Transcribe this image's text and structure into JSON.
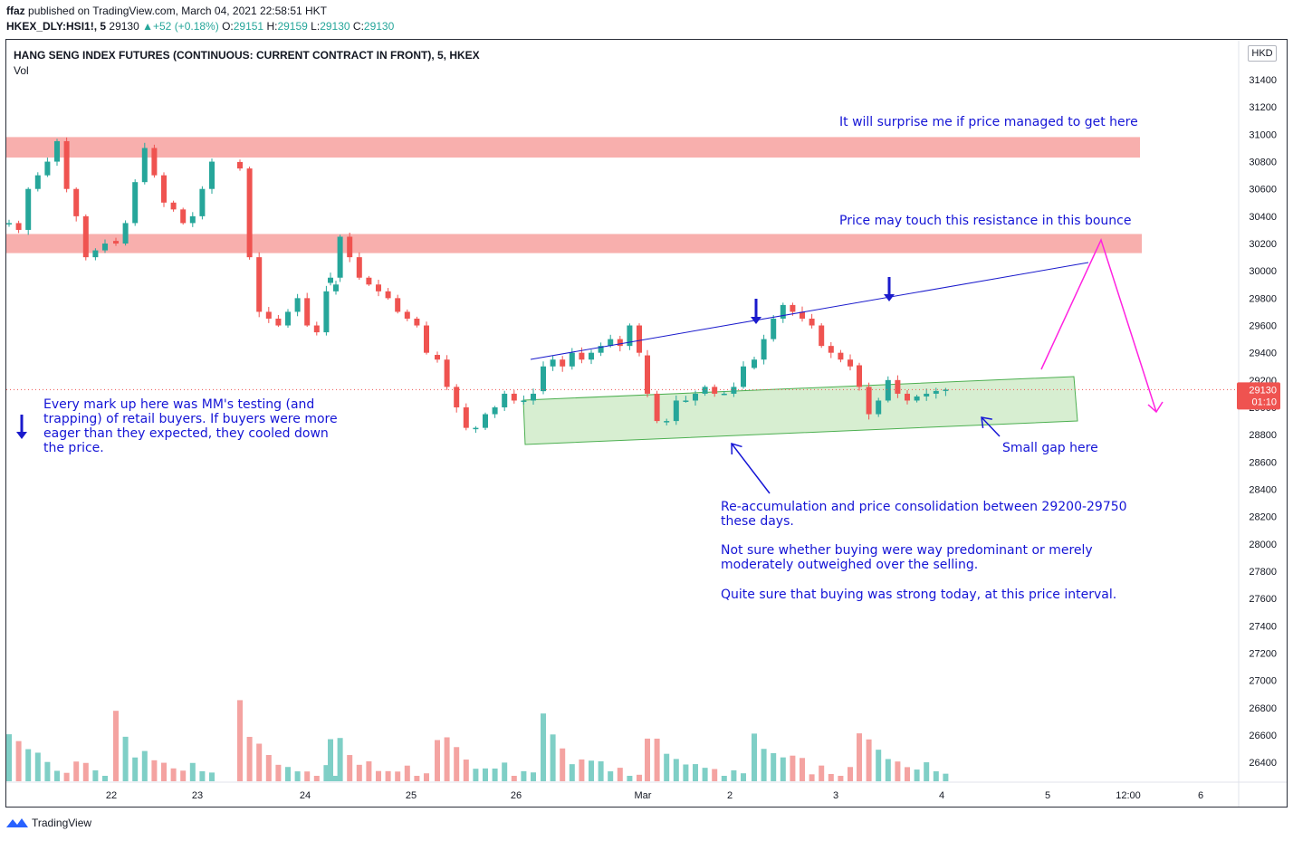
{
  "header": {
    "author": "ffaz",
    "published": "published on TradingView.com, March 04, 2021 22:58:51 HKT",
    "symbol_line": "HKEX_DLY:HSI1!, 5",
    "last": "29130",
    "change": "+52 (+0.18%)",
    "o_label": "O:",
    "o": "29151",
    "h_label": "H:",
    "h": "29159",
    "l_label": "L:",
    "l": "29130",
    "c_label": "C:",
    "c": "29130"
  },
  "chart": {
    "title": "HANG SENG INDEX FUTURES (CONTINUOUS: CURRENT CONTRACT IN FRONT), 5, HKEX",
    "volume_label": "Vol",
    "currency": "HKD",
    "last_price_tag": "29130",
    "countdown_tag": "01:10"
  },
  "annotations": {
    "surprise": "It will surprise me if price managed to get here",
    "resistance": "Price may touch this resistance in this bounce",
    "markup": "Every mark up here was MM's testing (and\ntrapping) of retail buyers. If buyers were more\neager than they expected, they cooled down\nthe price.",
    "gap": "Small gap here",
    "reaccum": "Re-accumulation and price consolidation between 29200-29750\nthese days.",
    "buying": "Not sure whether buying were way predominant or merely\nmoderately outweighed over the selling.",
    "strong": "Quite sure that buying was strong today, at this price interval."
  },
  "footer": {
    "brand": "TradingView"
  },
  "colors": {
    "up": "#26a69a",
    "down": "#ef5350",
    "zone": "#f7a6a4",
    "range": "#c9e8c2",
    "range_border": "#4caf50",
    "trend": "#1a1acc",
    "projection": "#ff22e0",
    "annotation": "#1515d6",
    "last_tag": "#ef5350"
  },
  "chart_data": {
    "type": "candlestick",
    "symbol": "HKEX_DLY:HSI1!",
    "interval": "5",
    "ylim": [
      26250,
      31750
    ],
    "y_ticks": [
      26400,
      26600,
      26800,
      27000,
      27200,
      27400,
      27600,
      27800,
      28000,
      28200,
      28400,
      28600,
      28800,
      29000,
      29200,
      29400,
      29600,
      29800,
      30000,
      30200,
      30400,
      30600,
      30800,
      31000,
      31200,
      31400
    ],
    "x_ticks": [
      "22",
      "23",
      "24",
      "25",
      "26",
      "Mar",
      "2",
      "3",
      "4",
      "5",
      "12:00",
      "6"
    ],
    "last_price": 29130,
    "resistance_zones": [
      [
        30830,
        30980
      ],
      [
        30130,
        30270
      ]
    ],
    "consolidation_range": [
      29200,
      29750
    ],
    "session_closes": [
      [
        30350,
        30300,
        30600,
        30700,
        30800,
        30950,
        30600,
        30400,
        30100,
        30150,
        30200
      ],
      [
        30200,
        30350,
        30650,
        30900,
        30700,
        30500,
        30450,
        30350,
        30400,
        30600,
        30800
      ],
      [
        30750,
        30100,
        29700,
        29650,
        29600,
        29700,
        29800,
        29600,
        29550,
        29850,
        29900
      ],
      [
        29950,
        30250,
        30100,
        29950,
        29900,
        29850,
        29800,
        29700,
        29650,
        29600,
        29400
      ],
      [
        29350,
        29150,
        29000,
        28850,
        28850,
        28950,
        29000,
        29100,
        29050,
        29050,
        29100
      ],
      [
        29300,
        29350,
        29300,
        29400,
        29350,
        29400,
        29450,
        29500,
        29450,
        29600,
        29400
      ],
      [
        29100,
        28900,
        28900,
        29050,
        29050,
        29100,
        29150,
        29100,
        29100,
        29150,
        29300
      ],
      [
        29350,
        29500,
        29650,
        29750,
        29700,
        29650,
        29600,
        29450,
        29400,
        29350,
        29300
      ],
      [
        29150,
        28950,
        29050,
        29200,
        29100,
        29050,
        29080,
        29100,
        29120,
        29130
      ]
    ]
  }
}
